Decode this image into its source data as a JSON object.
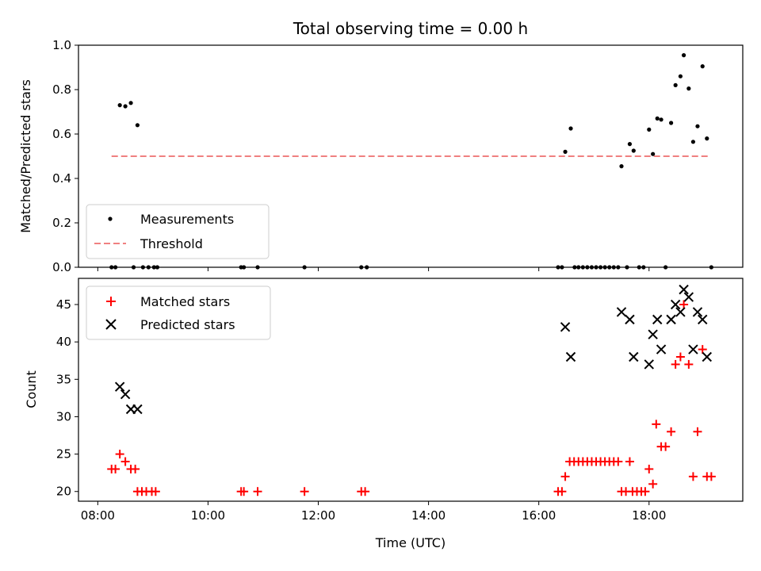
{
  "chart_data": {
    "title": "Total observing time = 0.00 h",
    "xlabel": "Time (UTC)",
    "x_unit": "hours UTC",
    "x_tick_values": [
      8,
      10,
      12,
      14,
      16,
      18
    ],
    "x_tick_labels": [
      "08:00",
      "10:00",
      "12:00",
      "14:00",
      "16:00",
      "18:00"
    ],
    "x_range": [
      7.65,
      19.7
    ],
    "colors": {
      "measurements": "#000000",
      "threshold": "#f08080",
      "matched": "#ff0000",
      "predicted": "#000000"
    },
    "top": {
      "type": "scatter",
      "ylabel": "Matched/Predicted stars",
      "ylim": [
        0,
        1
      ],
      "y_ticks": [
        0.0,
        0.2,
        0.4,
        0.6,
        0.8,
        1.0
      ],
      "y_tick_labels": [
        "0.0",
        "0.2",
        "0.4",
        "0.6",
        "0.8",
        "1.0"
      ],
      "legend_position": "lower-left",
      "legend": [
        "Measurements",
        "Threshold"
      ],
      "threshold": {
        "name": "Threshold",
        "y": 0.5,
        "x_range": [
          8.25,
          19.1
        ]
      },
      "measurements": {
        "name": "Measurements",
        "points": [
          [
            8.25,
            0
          ],
          [
            8.32,
            0
          ],
          [
            8.4,
            0.73
          ],
          [
            8.5,
            0.725
          ],
          [
            8.6,
            0.74
          ],
          [
            8.72,
            0.64
          ],
          [
            8.65,
            0
          ],
          [
            8.82,
            0
          ],
          [
            8.92,
            0
          ],
          [
            9.02,
            0
          ],
          [
            9.08,
            0
          ],
          [
            10.6,
            0
          ],
          [
            10.65,
            0
          ],
          [
            10.9,
            0
          ],
          [
            11.75,
            0
          ],
          [
            12.78,
            0
          ],
          [
            12.88,
            0
          ],
          [
            16.35,
            0
          ],
          [
            16.42,
            0
          ],
          [
            16.48,
            0.52
          ],
          [
            16.58,
            0.625
          ],
          [
            16.65,
            0
          ],
          [
            16.72,
            0
          ],
          [
            16.8,
            0
          ],
          [
            16.88,
            0
          ],
          [
            16.96,
            0
          ],
          [
            17.04,
            0
          ],
          [
            17.12,
            0
          ],
          [
            17.2,
            0
          ],
          [
            17.28,
            0
          ],
          [
            17.36,
            0
          ],
          [
            17.44,
            0
          ],
          [
            17.5,
            0.455
          ],
          [
            17.6,
            0
          ],
          [
            17.65,
            0.555
          ],
          [
            17.72,
            0.525
          ],
          [
            17.82,
            0
          ],
          [
            17.9,
            0
          ],
          [
            18.0,
            0.62
          ],
          [
            18.07,
            0.51
          ],
          [
            18.15,
            0.67
          ],
          [
            18.22,
            0.665
          ],
          [
            18.3,
            0
          ],
          [
            18.4,
            0.65
          ],
          [
            18.48,
            0.82
          ],
          [
            18.57,
            0.86
          ],
          [
            18.63,
            0.955
          ],
          [
            18.72,
            0.805
          ],
          [
            18.8,
            0.565
          ],
          [
            18.88,
            0.635
          ],
          [
            18.97,
            0.905
          ],
          [
            19.05,
            0.58
          ],
          [
            19.13,
            0
          ]
        ]
      }
    },
    "bottom": {
      "type": "scatter",
      "ylabel": "Count",
      "ylim": [
        18.7,
        48.5
      ],
      "y_ticks": [
        20,
        25,
        30,
        35,
        40,
        45
      ],
      "y_tick_labels": [
        "20",
        "25",
        "30",
        "35",
        "40",
        "45"
      ],
      "legend_position": "upper-left",
      "legend": [
        "Matched stars",
        "Predicted stars"
      ],
      "series": [
        {
          "name": "Matched stars",
          "marker": "plus",
          "points": [
            [
              8.25,
              23
            ],
            [
              8.32,
              23
            ],
            [
              8.4,
              25
            ],
            [
              8.5,
              24
            ],
            [
              8.6,
              23
            ],
            [
              8.68,
              23
            ],
            [
              8.72,
              20
            ],
            [
              8.8,
              20
            ],
            [
              8.88,
              20
            ],
            [
              8.98,
              20
            ],
            [
              9.05,
              20
            ],
            [
              10.6,
              20
            ],
            [
              10.65,
              20
            ],
            [
              10.9,
              20
            ],
            [
              11.75,
              20
            ],
            [
              12.78,
              20
            ],
            [
              12.85,
              20
            ],
            [
              16.35,
              20
            ],
            [
              16.42,
              20
            ],
            [
              16.48,
              22
            ],
            [
              16.56,
              24
            ],
            [
              16.64,
              24
            ],
            [
              16.72,
              24
            ],
            [
              16.8,
              24
            ],
            [
              16.88,
              24
            ],
            [
              16.96,
              24
            ],
            [
              17.04,
              24
            ],
            [
              17.12,
              24
            ],
            [
              17.2,
              24
            ],
            [
              17.28,
              24
            ],
            [
              17.36,
              24
            ],
            [
              17.44,
              24
            ],
            [
              17.5,
              20
            ],
            [
              17.58,
              20
            ],
            [
              17.65,
              24
            ],
            [
              17.7,
              20
            ],
            [
              17.78,
              20
            ],
            [
              17.86,
              20
            ],
            [
              17.93,
              20
            ],
            [
              18.0,
              23
            ],
            [
              18.07,
              21
            ],
            [
              18.13,
              29
            ],
            [
              18.22,
              26
            ],
            [
              18.3,
              26
            ],
            [
              18.4,
              28
            ],
            [
              18.48,
              37
            ],
            [
              18.57,
              38
            ],
            [
              18.63,
              45
            ],
            [
              18.72,
              37
            ],
            [
              18.8,
              22
            ],
            [
              18.88,
              28
            ],
            [
              18.97,
              39
            ],
            [
              19.05,
              22
            ],
            [
              19.13,
              22
            ]
          ]
        },
        {
          "name": "Predicted stars",
          "marker": "x",
          "points": [
            [
              8.4,
              34
            ],
            [
              8.5,
              33
            ],
            [
              8.6,
              31
            ],
            [
              8.72,
              31
            ],
            [
              16.48,
              42
            ],
            [
              16.58,
              38
            ],
            [
              17.5,
              44
            ],
            [
              17.65,
              43
            ],
            [
              17.72,
              38
            ],
            [
              18.0,
              37
            ],
            [
              18.07,
              41
            ],
            [
              18.15,
              43
            ],
            [
              18.22,
              39
            ],
            [
              18.4,
              43
            ],
            [
              18.48,
              45
            ],
            [
              18.57,
              44
            ],
            [
              18.63,
              47
            ],
            [
              18.72,
              46
            ],
            [
              18.8,
              39
            ],
            [
              18.88,
              44
            ],
            [
              18.97,
              43
            ],
            [
              19.05,
              38
            ]
          ]
        }
      ]
    }
  }
}
